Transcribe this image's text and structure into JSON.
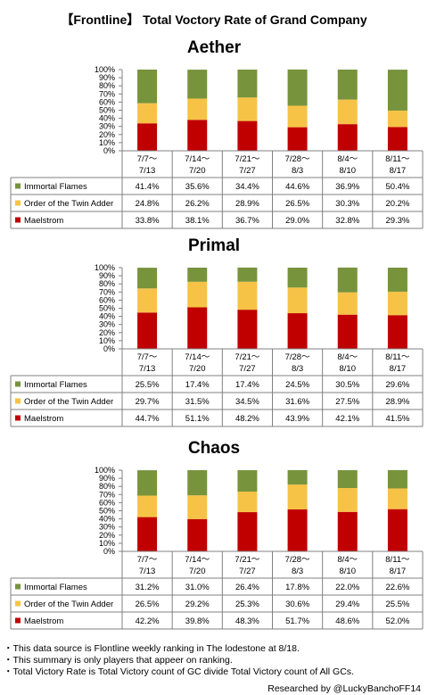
{
  "title": "【Frontline】 Total Voctory Rate of  Grand Company",
  "colors": {
    "immortal_flames": "#77933c",
    "twin_adder": "#f6c346",
    "maelstrom": "#c00000"
  },
  "chart_data": [
    {
      "type": "bar",
      "stacked": true,
      "title": "Aether",
      "categories": [
        [
          "7/7～",
          "7/13"
        ],
        [
          "7/14～",
          "7/20"
        ],
        [
          "7/21～",
          "7/27"
        ],
        [
          "7/28～",
          "8/3"
        ],
        [
          "8/4～",
          "8/10"
        ],
        [
          "8/11～",
          "8/17"
        ]
      ],
      "yticks": [
        "0%",
        "10%",
        "20%",
        "30%",
        "40%",
        "50%",
        "60%",
        "70%",
        "80%",
        "90%",
        "100%"
      ],
      "ylim": [
        0,
        100
      ],
      "series": [
        {
          "name": "Immortal Flames",
          "color": "#77933c",
          "values": [
            41.4,
            35.6,
            34.4,
            44.6,
            36.9,
            50.4
          ],
          "labels": [
            "41.4%",
            "35.6%",
            "34.4%",
            "44.6%",
            "36.9%",
            "50.4%"
          ]
        },
        {
          "name": "Order of the Twin Adder",
          "color": "#f6c346",
          "values": [
            24.8,
            26.2,
            28.9,
            26.5,
            30.3,
            20.2
          ],
          "labels": [
            "24.8%",
            "26.2%",
            "28.9%",
            "26.5%",
            "30.3%",
            "20.2%"
          ]
        },
        {
          "name": "Maelstrom",
          "color": "#c00000",
          "values": [
            33.8,
            38.1,
            36.7,
            29.0,
            32.8,
            29.3
          ],
          "labels": [
            "33.8%",
            "38.1%",
            "36.7%",
            "29.0%",
            "32.8%",
            "29.3%"
          ]
        }
      ]
    },
    {
      "type": "bar",
      "stacked": true,
      "title": "Primal",
      "categories": [
        [
          "7/7～",
          "7/13"
        ],
        [
          "7/14～",
          "7/20"
        ],
        [
          "7/21～",
          "7/27"
        ],
        [
          "7/28～",
          "8/3"
        ],
        [
          "8/4～",
          "8/10"
        ],
        [
          "8/11～",
          "8/17"
        ]
      ],
      "yticks": [
        "0%",
        "10%",
        "20%",
        "30%",
        "40%",
        "50%",
        "60%",
        "70%",
        "80%",
        "90%",
        "100%"
      ],
      "ylim": [
        0,
        100
      ],
      "series": [
        {
          "name": "Immortal Flames",
          "color": "#77933c",
          "values": [
            25.5,
            17.4,
            17.4,
            24.5,
            30.5,
            29.6
          ],
          "labels": [
            "25.5%",
            "17.4%",
            "17.4%",
            "24.5%",
            "30.5%",
            "29.6%"
          ]
        },
        {
          "name": "Order of the Twin Adder",
          "color": "#f6c346",
          "values": [
            29.7,
            31.5,
            34.5,
            31.6,
            27.5,
            28.9
          ],
          "labels": [
            "29.7%",
            "31.5%",
            "34.5%",
            "31.6%",
            "27.5%",
            "28.9%"
          ]
        },
        {
          "name": "Maelstrom",
          "color": "#c00000",
          "values": [
            44.7,
            51.1,
            48.2,
            43.9,
            42.1,
            41.5
          ],
          "labels": [
            "44.7%",
            "51.1%",
            "48.2%",
            "43.9%",
            "42.1%",
            "41.5%"
          ]
        }
      ]
    },
    {
      "type": "bar",
      "stacked": true,
      "title": "Chaos",
      "categories": [
        [
          "7/7～",
          "7/13"
        ],
        [
          "7/14～",
          "7/20"
        ],
        [
          "7/21～",
          "7/27"
        ],
        [
          "7/28～",
          "8/3"
        ],
        [
          "8/4～",
          "8/10"
        ],
        [
          "8/11～",
          "8/17"
        ]
      ],
      "yticks": [
        "0%",
        "10%",
        "20%",
        "30%",
        "40%",
        "50%",
        "60%",
        "70%",
        "80%",
        "90%",
        "100%"
      ],
      "ylim": [
        0,
        100
      ],
      "series": [
        {
          "name": "Immortal Flames",
          "color": "#77933c",
          "values": [
            31.2,
            31.0,
            26.4,
            17.8,
            22.0,
            22.6
          ],
          "labels": [
            "31.2%",
            "31.0%",
            "26.4%",
            "17.8%",
            "22.0%",
            "22.6%"
          ]
        },
        {
          "name": "Order of the Twin Adder",
          "color": "#f6c346",
          "values": [
            26.5,
            29.2,
            25.3,
            30.6,
            29.4,
            25.5
          ],
          "labels": [
            "26.5%",
            "29.2%",
            "25.3%",
            "30.6%",
            "29.4%",
            "25.5%"
          ]
        },
        {
          "name": "Maelstrom",
          "color": "#c00000",
          "values": [
            42.2,
            39.8,
            48.3,
            51.7,
            48.6,
            52.0
          ],
          "labels": [
            "42.2%",
            "39.8%",
            "48.3%",
            "51.7%",
            "48.6%",
            "52.0%"
          ]
        }
      ]
    }
  ],
  "notes": [
    "・This data source is Flontline weekly ranking in The lodestone at 8/18.",
    "・This summary is only players that appeer on ranking.",
    "・Total Victory Rate is Total Victory count of GC divide Total Victory count of All GCs."
  ],
  "credit": "Researched by @LuckyBanchoFF14"
}
